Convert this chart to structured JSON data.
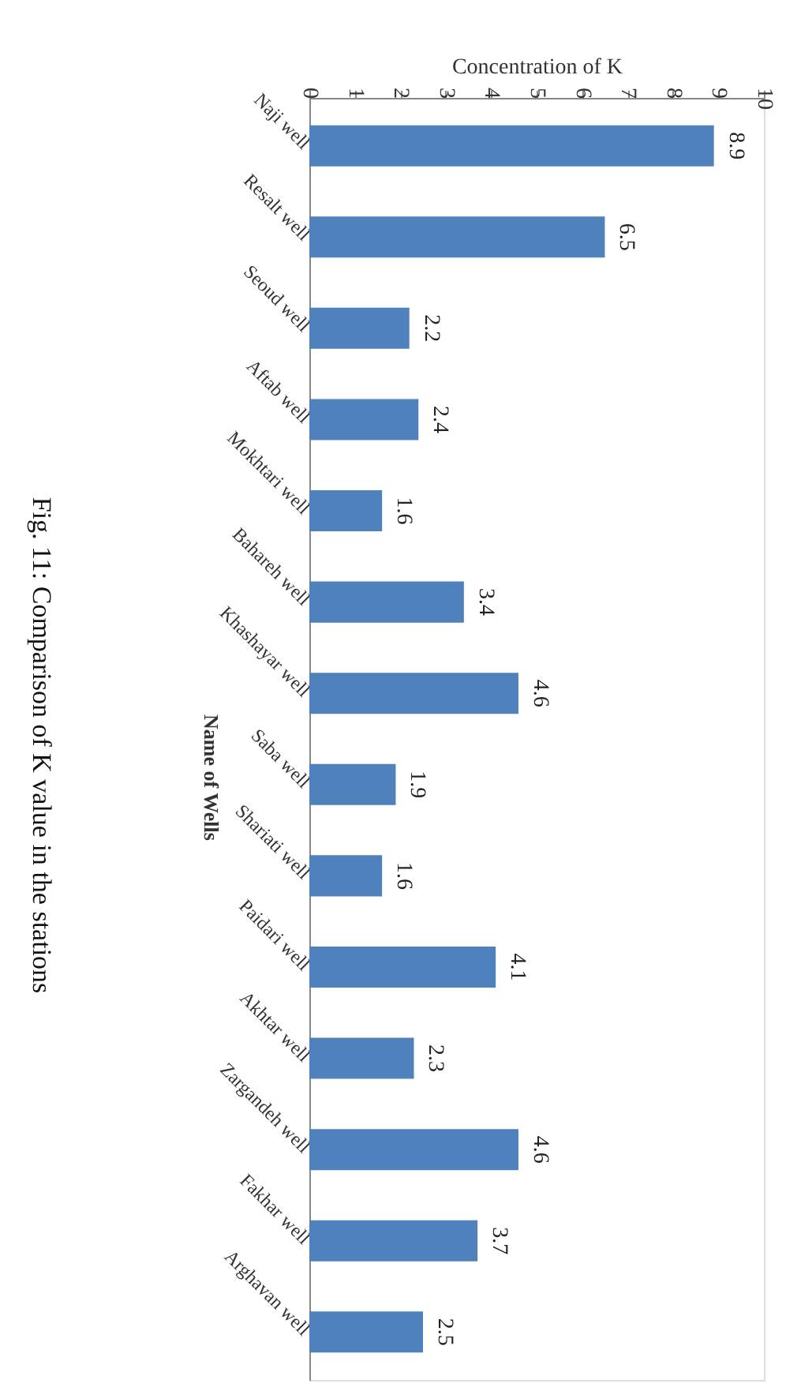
{
  "chart_data": {
    "type": "bar",
    "orientation": "horizontal",
    "xlabel": "Concentration of K",
    "ylabel": "Name of Wells",
    "categories": [
      "Naji well",
      "Resalt well",
      "Seoud well",
      "Aftab well",
      "Mokhtari well",
      "Bahareh well",
      "Khashayar well",
      "Saba well",
      "Shariati well",
      "Paidari well",
      "Akhtar well",
      "Zargandeh well",
      "Fakhar well",
      "Arghavan well"
    ],
    "values": [
      8.9,
      6.5,
      2.2,
      2.4,
      1.6,
      3.4,
      4.6,
      1.9,
      1.6,
      4.1,
      2.3,
      4.6,
      3.7,
      2.5
    ],
    "color": "#4f81bd",
    "xlim": [
      0,
      10
    ],
    "xticks": [
      0,
      1,
      2,
      3,
      4,
      5,
      6,
      7,
      8,
      9,
      10
    ],
    "data_labels": true,
    "grid": false,
    "annotations": [
      "Fig. 11:  Comparison of K value in the stations"
    ]
  }
}
